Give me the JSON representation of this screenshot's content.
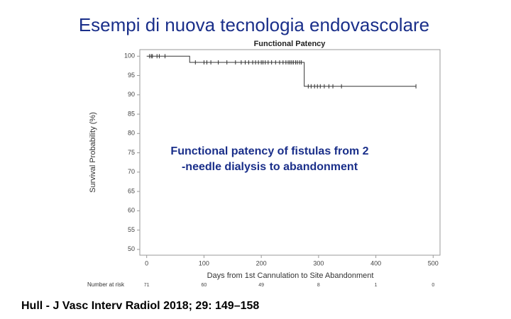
{
  "slide_title": "Esempi di nuova tecnologia endovascolare",
  "citation": "Hull - J Vasc Interv Radiol 2018; 29: 149–158",
  "chart_data": {
    "type": "step",
    "title": "Functional Patency",
    "x_label": "Days from 1st Cannulation to Site Abandonment",
    "y_label": "Survival Probability (%)",
    "annotation": [
      "Functional patency of fistulas from 2",
      "-needle dialysis to abandonment"
    ],
    "color": "#333333",
    "xlim": [
      -12,
      512
    ],
    "ylim": [
      48.5,
      101.7
    ],
    "xticks": [
      0,
      100,
      200,
      300,
      400,
      500
    ],
    "yticks": [
      50,
      55,
      60,
      65,
      70,
      75,
      80,
      85,
      90,
      95,
      100
    ],
    "grid": false,
    "series": [
      {
        "name": "Survival",
        "x": [
          0,
          75,
          275,
          470
        ],
        "values": [
          100,
          98.4,
          92.2,
          92.2
        ]
      },
      {
        "name": "Censored",
        "x": [
          5,
          8,
          10,
          18,
          22,
          32,
          85,
          100,
          105,
          112,
          125,
          140,
          155,
          165,
          172,
          178,
          185,
          190,
          195,
          200,
          203,
          207,
          212,
          218,
          225,
          232,
          238,
          243,
          247,
          250,
          253,
          256,
          260,
          263,
          267,
          270,
          282,
          287,
          293,
          298,
          303,
          310,
          318,
          325,
          340,
          470
        ],
        "values": [
          100,
          100,
          100,
          100,
          100,
          100,
          98.4,
          98.4,
          98.4,
          98.4,
          98.4,
          98.4,
          98.4,
          98.4,
          98.4,
          98.4,
          98.4,
          98.4,
          98.4,
          98.4,
          98.4,
          98.4,
          98.4,
          98.4,
          98.4,
          98.4,
          98.4,
          98.4,
          98.4,
          98.4,
          98.4,
          98.4,
          98.4,
          98.4,
          98.4,
          98.4,
          92.2,
          92.2,
          92.2,
          92.2,
          92.2,
          92.2,
          92.2,
          92.2,
          92.2,
          92.2
        ]
      }
    ],
    "at_risk": {
      "label": "Number at risk",
      "values": [
        71,
        60,
        49,
        8,
        1,
        0
      ]
    }
  }
}
